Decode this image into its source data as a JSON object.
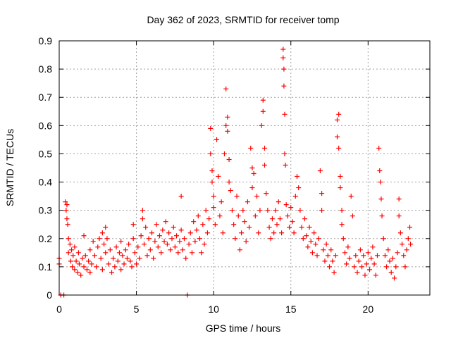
{
  "chart_data": {
    "type": "scatter",
    "title": "Day 362 of 2023, SRMTID for receiver tomp",
    "xlabel": "GPS time / hours",
    "ylabel": "SRMTID / TECUs",
    "xlim": [
      0,
      24
    ],
    "ylim": [
      0,
      0.9
    ],
    "xticks": [
      0,
      5,
      10,
      15,
      20
    ],
    "yticks": [
      0,
      0.1,
      0.2,
      0.3,
      0.4,
      0.5,
      0.6,
      0.7,
      0.8,
      0.9
    ],
    "xtick_labels": [
      "0",
      "5",
      "10",
      "15",
      "20"
    ],
    "ytick_labels": [
      "0",
      "0.1",
      "0.2",
      "0.3",
      "0.4",
      "0.5",
      "0.6",
      "0.7",
      "0.8",
      "0.9"
    ],
    "grid": true,
    "marker": "+",
    "color": "#ff0000",
    "series": [
      {
        "name": "SRMTID",
        "points": [
          [
            0.0,
            0.13
          ],
          [
            0.0,
            0.11
          ],
          [
            0.1,
            0.0
          ],
          [
            0.3,
            0.0
          ],
          [
            0.4,
            0.33
          ],
          [
            0.45,
            0.3
          ],
          [
            0.5,
            0.27
          ],
          [
            0.5,
            0.32
          ],
          [
            0.55,
            0.25
          ],
          [
            0.6,
            0.2
          ],
          [
            0.6,
            0.15
          ],
          [
            0.7,
            0.18
          ],
          [
            0.75,
            0.12
          ],
          [
            0.8,
            0.16
          ],
          [
            0.85,
            0.1
          ],
          [
            0.9,
            0.14
          ],
          [
            1.0,
            0.09
          ],
          [
            1.0,
            0.17
          ],
          [
            1.1,
            0.12
          ],
          [
            1.2,
            0.08
          ],
          [
            1.25,
            0.15
          ],
          [
            1.3,
            0.11
          ],
          [
            1.4,
            0.07
          ],
          [
            1.5,
            0.13
          ],
          [
            1.6,
            0.1
          ],
          [
            1.6,
            0.21
          ],
          [
            1.7,
            0.14
          ],
          [
            1.8,
            0.09
          ],
          [
            1.9,
            0.12
          ],
          [
            2.0,
            0.16
          ],
          [
            2.0,
            0.08
          ],
          [
            2.1,
            0.11
          ],
          [
            2.2,
            0.19
          ],
          [
            2.3,
            0.14
          ],
          [
            2.4,
            0.1
          ],
          [
            2.5,
            0.17
          ],
          [
            2.6,
            0.2
          ],
          [
            2.7,
            0.13
          ],
          [
            2.8,
            0.09
          ],
          [
            2.8,
            0.22
          ],
          [
            2.9,
            0.18
          ],
          [
            3.0,
            0.15
          ],
          [
            3.0,
            0.24
          ],
          [
            3.1,
            0.2
          ],
          [
            3.2,
            0.11
          ],
          [
            3.3,
            0.16
          ],
          [
            3.4,
            0.08
          ],
          [
            3.5,
            0.13
          ],
          [
            3.6,
            0.1
          ],
          [
            3.7,
            0.17
          ],
          [
            3.8,
            0.12
          ],
          [
            3.9,
            0.15
          ],
          [
            4.0,
            0.19
          ],
          [
            4.0,
            0.09
          ],
          [
            4.1,
            0.14
          ],
          [
            4.2,
            0.11
          ],
          [
            4.3,
            0.16
          ],
          [
            4.4,
            0.13
          ],
          [
            4.5,
            0.18
          ],
          [
            4.6,
            0.12
          ],
          [
            4.7,
            0.1
          ],
          [
            4.8,
            0.25
          ],
          [
            4.8,
            0.2
          ],
          [
            4.9,
            0.15
          ],
          [
            5.0,
            0.11
          ],
          [
            5.1,
            0.17
          ],
          [
            5.2,
            0.13
          ],
          [
            5.3,
            0.21
          ],
          [
            5.4,
            0.3
          ],
          [
            5.4,
            0.27
          ],
          [
            5.5,
            0.18
          ],
          [
            5.6,
            0.24
          ],
          [
            5.7,
            0.14
          ],
          [
            5.8,
            0.2
          ],
          [
            5.9,
            0.16
          ],
          [
            6.0,
            0.22
          ],
          [
            6.1,
            0.13
          ],
          [
            6.2,
            0.19
          ],
          [
            6.3,
            0.25
          ],
          [
            6.4,
            0.17
          ],
          [
            6.5,
            0.21
          ],
          [
            6.6,
            0.15
          ],
          [
            6.7,
            0.23
          ],
          [
            6.8,
            0.19
          ],
          [
            6.9,
            0.26
          ],
          [
            7.0,
            0.18
          ],
          [
            7.1,
            0.22
          ],
          [
            7.2,
            0.16
          ],
          [
            7.3,
            0.2
          ],
          [
            7.4,
            0.24
          ],
          [
            7.5,
            0.17
          ],
          [
            7.6,
            0.21
          ],
          [
            7.7,
            0.15
          ],
          [
            7.8,
            0.19
          ],
          [
            7.9,
            0.23
          ],
          [
            7.9,
            0.35
          ],
          [
            8.0,
            0.16
          ],
          [
            8.1,
            0.2
          ],
          [
            8.2,
            0.13
          ],
          [
            8.3,
            0.0
          ],
          [
            8.4,
            0.18
          ],
          [
            8.5,
            0.22
          ],
          [
            8.6,
            0.15
          ],
          [
            8.7,
            0.26
          ],
          [
            8.8,
            0.19
          ],
          [
            8.9,
            0.23
          ],
          [
            9.0,
            0.28
          ],
          [
            9.1,
            0.2
          ],
          [
            9.2,
            0.15
          ],
          [
            9.3,
            0.25
          ],
          [
            9.4,
            0.18
          ],
          [
            9.5,
            0.3
          ],
          [
            9.6,
            0.22
          ],
          [
            9.7,
            0.27
          ],
          [
            9.8,
            0.59
          ],
          [
            9.8,
            0.5
          ],
          [
            9.9,
            0.44
          ],
          [
            9.9,
            0.4
          ],
          [
            10.0,
            0.35
          ],
          [
            10.0,
            0.31
          ],
          [
            10.1,
            0.25
          ],
          [
            10.2,
            0.55
          ],
          [
            10.3,
            0.42
          ],
          [
            10.4,
            0.28
          ],
          [
            10.5,
            0.33
          ],
          [
            10.6,
            0.22
          ],
          [
            10.7,
            0.5
          ],
          [
            10.8,
            0.73
          ],
          [
            10.8,
            0.6
          ],
          [
            10.9,
            0.58
          ],
          [
            10.9,
            0.63
          ],
          [
            11.0,
            0.48
          ],
          [
            11.0,
            0.4
          ],
          [
            11.1,
            0.37
          ],
          [
            11.2,
            0.3
          ],
          [
            11.3,
            0.25
          ],
          [
            11.4,
            0.2
          ],
          [
            11.5,
            0.35
          ],
          [
            11.6,
            0.28
          ],
          [
            11.7,
            0.16
          ],
          [
            11.8,
            0.22
          ],
          [
            11.9,
            0.3
          ],
          [
            12.0,
            0.26
          ],
          [
            12.1,
            0.19
          ],
          [
            12.2,
            0.33
          ],
          [
            12.3,
            0.24
          ],
          [
            12.4,
            0.52
          ],
          [
            12.5,
            0.45
          ],
          [
            12.5,
            0.38
          ],
          [
            12.6,
            0.43
          ],
          [
            12.7,
            0.28
          ],
          [
            12.8,
            0.35
          ],
          [
            12.9,
            0.22
          ],
          [
            13.0,
            0.3
          ],
          [
            13.1,
            0.6
          ],
          [
            13.2,
            0.69
          ],
          [
            13.2,
            0.65
          ],
          [
            13.3,
            0.52
          ],
          [
            13.3,
            0.46
          ],
          [
            13.4,
            0.36
          ],
          [
            13.5,
            0.3
          ],
          [
            13.6,
            0.24
          ],
          [
            13.7,
            0.2
          ],
          [
            13.8,
            0.27
          ],
          [
            13.9,
            0.22
          ],
          [
            14.0,
            0.3
          ],
          [
            14.1,
            0.25
          ],
          [
            14.2,
            0.33
          ],
          [
            14.3,
            0.27
          ],
          [
            14.4,
            0.22
          ],
          [
            14.5,
            0.87
          ],
          [
            14.5,
            0.84
          ],
          [
            14.55,
            0.8
          ],
          [
            14.55,
            0.74
          ],
          [
            14.6,
            0.64
          ],
          [
            14.6,
            0.5
          ],
          [
            14.65,
            0.46
          ],
          [
            14.7,
            0.32
          ],
          [
            14.8,
            0.28
          ],
          [
            14.9,
            0.24
          ],
          [
            15.0,
            0.31
          ],
          [
            15.1,
            0.26
          ],
          [
            15.2,
            0.22
          ],
          [
            15.3,
            0.35
          ],
          [
            15.4,
            0.42
          ],
          [
            15.5,
            0.38
          ],
          [
            15.6,
            0.3
          ],
          [
            15.7,
            0.24
          ],
          [
            15.8,
            0.2
          ],
          [
            15.9,
            0.27
          ],
          [
            16.0,
            0.21
          ],
          [
            16.1,
            0.17
          ],
          [
            16.2,
            0.24
          ],
          [
            16.3,
            0.19
          ],
          [
            16.4,
            0.15
          ],
          [
            16.5,
            0.22
          ],
          [
            16.6,
            0.18
          ],
          [
            16.7,
            0.14
          ],
          [
            16.8,
            0.2
          ],
          [
            16.9,
            0.44
          ],
          [
            17.0,
            0.36
          ],
          [
            17.0,
            0.3
          ],
          [
            17.1,
            0.16
          ],
          [
            17.2,
            0.12
          ],
          [
            17.3,
            0.18
          ],
          [
            17.4,
            0.14
          ],
          [
            17.5,
            0.1
          ],
          [
            17.6,
            0.16
          ],
          [
            17.7,
            0.12
          ],
          [
            17.8,
            0.08
          ],
          [
            17.9,
            0.14
          ],
          [
            18.0,
            0.62
          ],
          [
            18.0,
            0.56
          ],
          [
            18.1,
            0.64
          ],
          [
            18.1,
            0.52
          ],
          [
            18.2,
            0.42
          ],
          [
            18.2,
            0.38
          ],
          [
            18.3,
            0.3
          ],
          [
            18.3,
            0.25
          ],
          [
            18.4,
            0.2
          ],
          [
            18.5,
            0.15
          ],
          [
            18.6,
            0.11
          ],
          [
            18.7,
            0.17
          ],
          [
            18.8,
            0.13
          ],
          [
            18.9,
            0.35
          ],
          [
            19.0,
            0.28
          ],
          [
            19.1,
            0.1
          ],
          [
            19.2,
            0.14
          ],
          [
            19.3,
            0.08
          ],
          [
            19.4,
            0.12
          ],
          [
            19.5,
            0.16
          ],
          [
            19.6,
            0.1
          ],
          [
            19.7,
            0.14
          ],
          [
            19.8,
            0.07
          ],
          [
            19.9,
            0.11
          ],
          [
            20.0,
            0.15
          ],
          [
            20.1,
            0.09
          ],
          [
            20.2,
            0.13
          ],
          [
            20.3,
            0.17
          ],
          [
            20.4,
            0.11
          ],
          [
            20.5,
            0.07
          ],
          [
            20.6,
            0.14
          ],
          [
            20.7,
            0.52
          ],
          [
            20.75,
            0.44
          ],
          [
            20.8,
            0.4
          ],
          [
            20.85,
            0.34
          ],
          [
            20.9,
            0.28
          ],
          [
            21.0,
            0.2
          ],
          [
            21.1,
            0.14
          ],
          [
            21.2,
            0.1
          ],
          [
            21.3,
            0.16
          ],
          [
            21.4,
            0.12
          ],
          [
            21.5,
            0.08
          ],
          [
            21.6,
            0.13
          ],
          [
            21.7,
            0.06
          ],
          [
            21.8,
            0.1
          ],
          [
            21.9,
            0.15
          ],
          [
            22.0,
            0.34
          ],
          [
            22.0,
            0.28
          ],
          [
            22.1,
            0.22
          ],
          [
            22.2,
            0.18
          ],
          [
            22.3,
            0.14
          ],
          [
            22.4,
            0.1
          ],
          [
            22.5,
            0.16
          ],
          [
            22.6,
            0.2
          ],
          [
            22.7,
            0.24
          ],
          [
            22.75,
            0.18
          ]
        ]
      }
    ]
  }
}
